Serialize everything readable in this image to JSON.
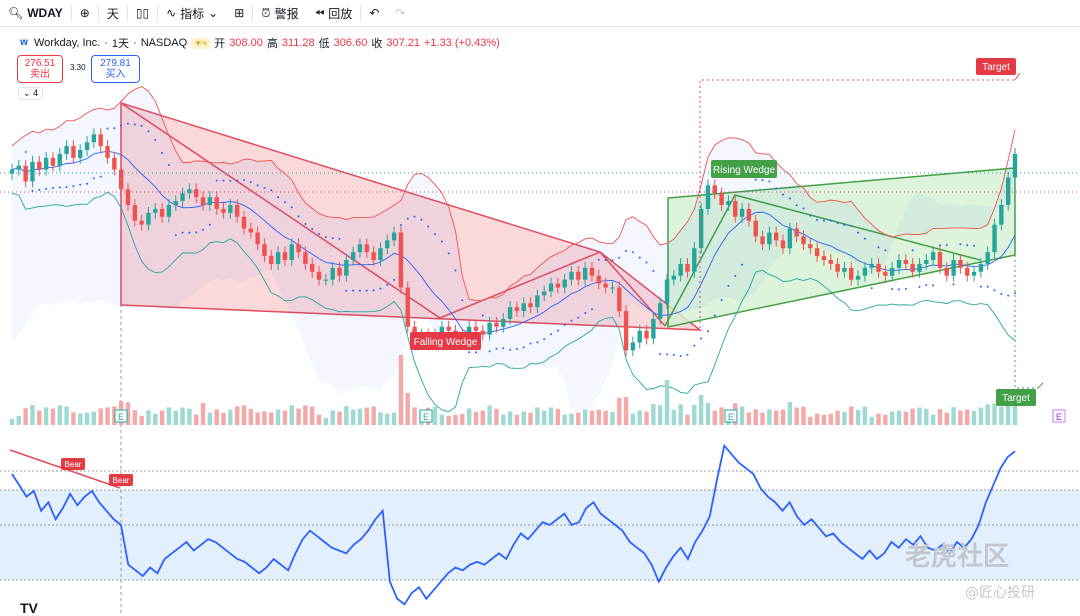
{
  "toolbar": {
    "symbol": "WDAY",
    "interval": "天",
    "indicators": "指标",
    "alerts": "警报",
    "replay": "回放"
  },
  "legend": {
    "name": "Workday, Inc.",
    "interval": "1天",
    "exchange": "NASDAQ",
    "open_label": "开",
    "open": "308.00",
    "high_label": "高",
    "high": "311.28",
    "low_label": "低",
    "low": "306.60",
    "close_label": "收",
    "close": "307.21",
    "change": "+1.33 (+0.43%)"
  },
  "quote": {
    "sell_price": "276.51",
    "sell_label": "卖出",
    "spread": "3.30",
    "buy_price": "279.81",
    "buy_label": "买入",
    "collapsed_count": "4"
  },
  "colors": {
    "up": "#26a69a",
    "down": "#ef5350",
    "falling_fill": "#f9c9cc",
    "rising_fill": "#d4f0d2",
    "rsi_line": "#2962ff",
    "rsi_band": "#e3effc"
  },
  "watermark": {
    "brand": "老虎社区",
    "author": "@匠心投研"
  },
  "chart_data": [
    {
      "type": "candlestick",
      "ylim": [
        255,
        325
      ],
      "close": [
        306,
        307,
        303,
        308,
        306,
        309,
        307,
        310,
        312,
        309,
        311,
        313,
        315,
        312,
        309,
        306,
        301,
        297,
        293,
        292,
        295,
        296,
        294,
        297,
        298,
        300,
        301,
        299,
        297,
        299,
        296,
        295,
        297,
        294,
        291,
        290,
        287,
        284,
        282,
        285,
        283,
        287,
        285,
        282,
        280,
        278,
        278,
        281,
        279,
        283,
        285,
        287,
        285,
        283,
        286,
        288,
        290,
        276,
        266,
        263,
        264,
        262,
        264,
        266,
        265,
        264,
        263,
        266,
        265,
        264,
        267,
        266,
        268,
        271,
        270,
        272,
        271,
        274,
        275,
        277,
        276,
        278,
        280,
        278,
        281,
        279,
        277,
        276,
        276,
        270,
        260,
        262,
        265,
        263,
        268,
        272,
        278,
        279,
        282,
        280,
        286,
        296,
        302,
        300,
        297,
        298,
        294,
        296,
        293,
        289,
        287,
        290,
        288,
        286,
        291,
        289,
        287,
        286,
        284,
        283,
        282,
        280,
        281,
        278,
        279,
        281,
        282,
        280,
        279,
        281,
        283,
        282,
        280,
        282,
        283,
        285,
        281,
        279,
        283,
        281,
        279,
        280,
        282,
        285,
        292,
        297,
        304,
        310
      ],
      "high_est": 311.28,
      "low_est": 258
    },
    {
      "type": "bar",
      "title": "Volume",
      "earnings_markers": [
        "E",
        "E",
        "E",
        "E"
      ]
    },
    {
      "type": "line",
      "title": "RSI",
      "ylim": [
        20,
        80
      ],
      "bands": [
        30,
        70
      ],
      "values": [
        68,
        64,
        60,
        62,
        55,
        58,
        52,
        56,
        61,
        57,
        60,
        62,
        58,
        55,
        52,
        50,
        36,
        34,
        32,
        35,
        33,
        38,
        40,
        42,
        44,
        41,
        43,
        45,
        44,
        42,
        40,
        38,
        37,
        35,
        33,
        35,
        38,
        36,
        34,
        40,
        45,
        48,
        46,
        44,
        42,
        41,
        40,
        43,
        45,
        48,
        52,
        55,
        30,
        24,
        22,
        26,
        28,
        24,
        27,
        30,
        33,
        35,
        34,
        36,
        37,
        36,
        38,
        40,
        38,
        43,
        47,
        45,
        48,
        51,
        50,
        52,
        54,
        50,
        51,
        56,
        58,
        54,
        52,
        50,
        48,
        44,
        42,
        40,
        36,
        30,
        35,
        39,
        42,
        38,
        44,
        48,
        53,
        66,
        78,
        75,
        72,
        70,
        68,
        63,
        60,
        58,
        55,
        58,
        53,
        50,
        52,
        49,
        46,
        47,
        44,
        42,
        40,
        38,
        41,
        38,
        40,
        44,
        42,
        45,
        43,
        46,
        42,
        41,
        43,
        40,
        44,
        42,
        45,
        50,
        58,
        64,
        70,
        74,
        76
      ]
    },
    {
      "type": "annotations",
      "labels": [
        "Falling Wedge",
        "Rising Wedge",
        "Target",
        "Target",
        "Bear",
        "Bear"
      ]
    }
  ]
}
